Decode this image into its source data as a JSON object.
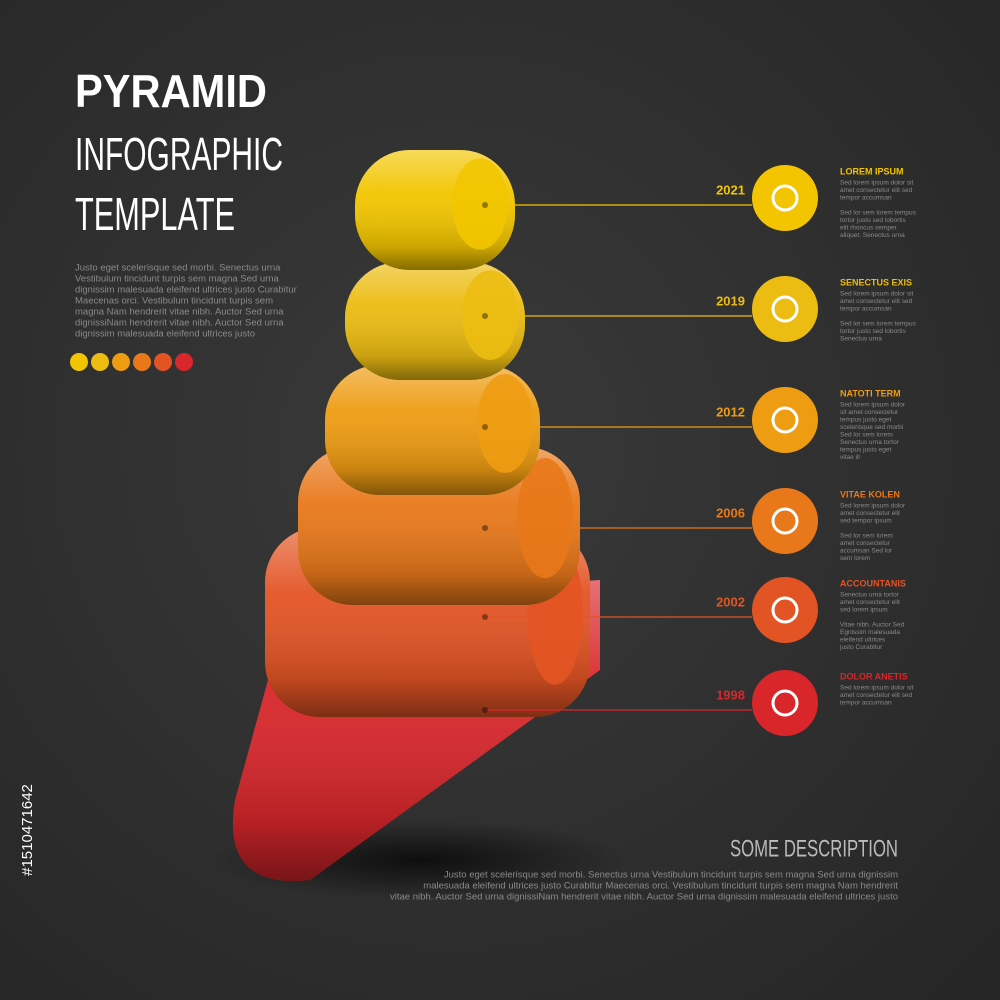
{
  "header": {
    "title": [
      "PYRAMID",
      "INFOGRAPHIC",
      "TEMPLATE"
    ],
    "intro": [
      "Justo eget scelerisque sed morbi. Senectus urna",
      "Vestibulum tincidunt turpis sem magna Sed urna",
      "dignissim malesuada eleifend ultrices justo Curabitur",
      "Maecenas orci. Vestibulum tincidunt turpis sem",
      "magna Nam hendrerit vitae nibh. Auctor Sed urna",
      "dignissiNam hendrerit vitae nibh. Auctor Sed urna",
      "dignissim malesuada eleifend ultrices justo"
    ]
  },
  "items": [
    {
      "year": "2021",
      "title": "LOREM IPSUM",
      "color": "#f2c500",
      "text": [
        "Sed lorem ipsum dolor sit",
        "amet consectetur elit sed",
        "tempor accumsan",
        "",
        "Sed lor sem lorem tempus",
        "tortor justo sed lobortis",
        "elit rhoncus semper",
        "aliquet. Senectus urna"
      ]
    },
    {
      "year": "2019",
      "title": "SENECTUS EXIS",
      "color": "#ecbc12",
      "text": [
        "Sed lorem ipsum dolor sit",
        "amet consectetur elit sed",
        "tempor accumsan",
        "",
        "Sed lor sem lorem tempus",
        "tortor justo sed lobortis",
        "Senectus urna"
      ]
    },
    {
      "year": "2012",
      "title": "NATOTI TERM",
      "color": "#ee9c12",
      "text": [
        "Sed lorem ipsum dolor",
        "sit amet consectetur",
        "tempus justo eget",
        "scelerisque sed morbi",
        "Sed lor sem lorem",
        "Senectus urna tortor",
        "tempus justo eget",
        "vitae ill"
      ]
    },
    {
      "year": "2006",
      "title": "VITAE KOLEN",
      "color": "#e8781a",
      "text": [
        "Sed lorem ipsum dolor",
        "amet consectetur elit",
        "sed tempor ipsum",
        "",
        "Sed lor sem lorem",
        "amet consectetur",
        "accumsan Sed lor",
        "sem lorem"
      ]
    },
    {
      "year": "2002",
      "title": "ACCOUNTANIS",
      "color": "#e35424",
      "text": [
        "Senectus urna tortor",
        "amet consectetur elit",
        "sed lorem ipsum",
        "",
        "Vitae nibh. Auctor Sed",
        "Egnissim malesuada",
        "eleifend ultrices",
        "justo Curabitur"
      ]
    },
    {
      "year": "1998",
      "title": "DOLOR ANETIS",
      "color": "#d8262b",
      "text": [
        "Sed lorem ipsum dolor sit",
        "amet consectetur elit sed",
        "tempor accumsan"
      ]
    }
  ],
  "description": {
    "title": "SOME DESCRIPTION",
    "text": [
      "Justo eget scelerisque sed morbi. Senectus urna Vestibulum tincidunt turpis sem magna Sed urna dignissim",
      "malesuada eleifend ultrices justo Curabitur Maecenas orci. Vestibulum tincidunt turpis sem magna Nam hendrerit",
      "vitae nibh. Auctor Sed urna dignissiNam hendrerit vitae nibh. Auctor Sed urna dignissim malesuada eleifend ultrices justo"
    ]
  },
  "stock_id": "#1510471642"
}
